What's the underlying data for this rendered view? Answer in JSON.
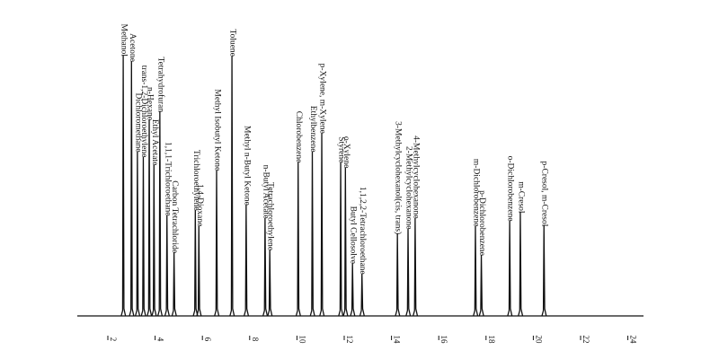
{
  "chart_data": {
    "type": "line",
    "title": "",
    "xlabel": "",
    "ylabel": "",
    "xlim": [
      1,
      25
    ],
    "ylim": [
      0,
      100
    ],
    "grid": false,
    "x_ticks": [
      2,
      4,
      6,
      8,
      10,
      12,
      14,
      16,
      18,
      20,
      22,
      24
    ],
    "x_tick_labels": [
      "2",
      "4",
      "6",
      "8",
      "10",
      "12",
      "14",
      "16",
      "18",
      "20",
      "22",
      "24"
    ],
    "peaks": [
      {
        "label": "Methanol",
        "x": 2.65,
        "height": 98
      },
      {
        "label": "Acetone",
        "x": 3.0,
        "height": 96
      },
      {
        "label": "Dichloromethane",
        "x": 3.25,
        "height": 62
      },
      {
        "label": "trans-1,2-Dichloroethylene",
        "x": 3.5,
        "height": 60
      },
      {
        "label": "n-Hexane",
        "x": 3.75,
        "height": 74
      },
      {
        "label": "Ethyl Acetate",
        "x": 3.95,
        "height": 57
      },
      {
        "label": "Tetrahydrofuran",
        "x": 4.2,
        "height": 77
      },
      {
        "label": "1,1,1-Trichloroethane",
        "x": 4.5,
        "height": 38
      },
      {
        "label": "Carbon Tetrachloride",
        "x": 4.8,
        "height": 24
      },
      {
        "label": "Trichloroethylene",
        "x": 5.7,
        "height": 40
      },
      {
        "label": "1,4-Dioxane",
        "x": 5.85,
        "height": 34
      },
      {
        "label": "Methyl Isobutyl Ketone",
        "x": 6.6,
        "height": 55
      },
      {
        "label": "Toluene",
        "x": 7.25,
        "height": 98
      },
      {
        "label": "Methyl n-Butyl Ketone",
        "x": 7.85,
        "height": 42
      },
      {
        "label": "n-Butyl Acetate",
        "x": 8.65,
        "height": 37
      },
      {
        "label": "Tetrachloroethylene",
        "x": 8.85,
        "height": 25
      },
      {
        "label": "Chlorobenzene",
        "x": 10.05,
        "height": 58
      },
      {
        "label": "Ethylbenzene",
        "x": 10.65,
        "height": 62
      },
      {
        "label": "p-Xylene, m-Xylene",
        "x": 11.05,
        "height": 69
      },
      {
        "label": "Styrene",
        "x": 11.85,
        "height": 58
      },
      {
        "label": "o-Xylene",
        "x": 12.05,
        "height": 56
      },
      {
        "label": "Butyl Cellosolve",
        "x": 12.35,
        "height": 20
      },
      {
        "label": "1,1,2,2-Tetrachloroethane",
        "x": 12.75,
        "height": 16
      },
      {
        "label": "3-Methylcyclohexanol(cis, trans)",
        "x": 14.25,
        "height": 31
      },
      {
        "label": "2-Methylcyclohexanone",
        "x": 14.7,
        "height": 33
      },
      {
        "label": "4-Methylcyclohexanone",
        "x": 15.0,
        "height": 37
      },
      {
        "label": "m-Dichlorobenzene",
        "x": 17.55,
        "height": 34
      },
      {
        "label": "p-Dichlorobenzene",
        "x": 17.8,
        "height": 23
      },
      {
        "label": "o-Dichlorobenzene",
        "x": 19.0,
        "height": 36
      },
      {
        "label": "m-Cresol",
        "x": 19.45,
        "height": 39
      },
      {
        "label": "p-Cresol, m-Cresol",
        "x": 20.45,
        "height": 34
      }
    ]
  }
}
